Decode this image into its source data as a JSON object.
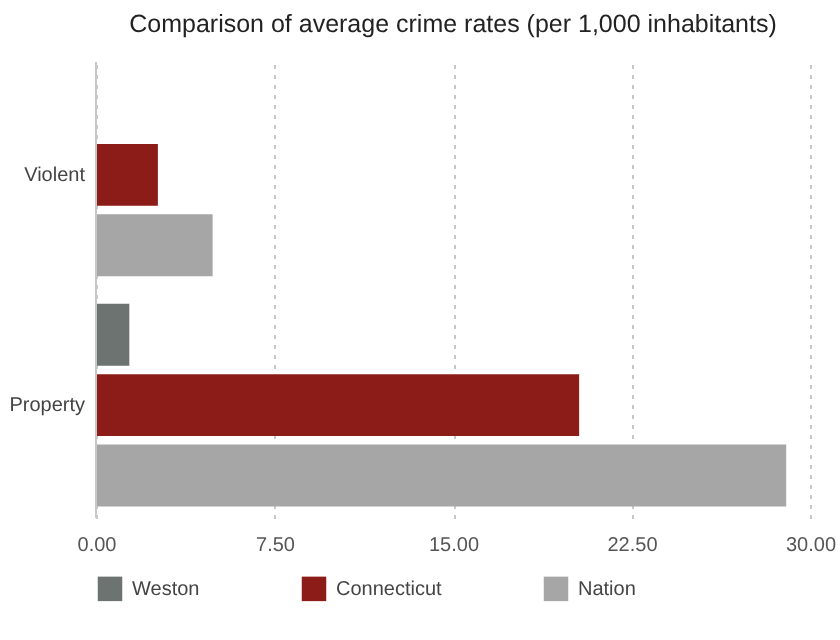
{
  "chart_data": {
    "type": "bar",
    "orientation": "horizontal",
    "title": "Comparison of average crime rates (per 1,000 inhabitants)",
    "categories": [
      "Violent",
      "Property"
    ],
    "series": [
      {
        "name": "Weston",
        "color": "#6d7370",
        "values": [
          null,
          1.4
        ]
      },
      {
        "name": "Connecticut",
        "color": "#8b1c17",
        "values": [
          2.6,
          20.3
        ]
      },
      {
        "name": "Nation",
        "color": "#a6a6a6",
        "values": [
          4.9,
          29.0
        ]
      }
    ],
    "xlim": [
      0,
      30
    ],
    "xticks": [
      {
        "value": 0,
        "label": "0.00"
      },
      {
        "value": 7.5,
        "label": "7.50"
      },
      {
        "value": 15,
        "label": "15.00"
      },
      {
        "value": 22.5,
        "label": "22.50"
      },
      {
        "value": 30,
        "label": "30.00"
      }
    ],
    "grid": "x",
    "legend": "bottom"
  }
}
